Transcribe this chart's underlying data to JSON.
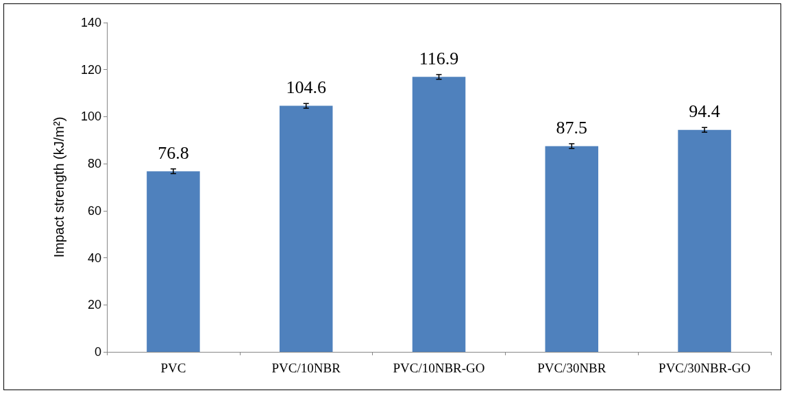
{
  "chart_data": {
    "type": "bar",
    "ylabel": "Impact strength (kJ/m²)",
    "categories": [
      "PVC",
      "PVC/10NBR",
      "PVC/10NBR-GO",
      "PVC/30NBR",
      "PVC/30NBR-GO"
    ],
    "values": [
      76.8,
      104.6,
      116.9,
      87.5,
      94.4
    ],
    "errors": [
      1,
      1,
      1,
      1,
      1
    ],
    "color": "#4f81bd",
    "ylim": [
      0,
      140
    ],
    "yticks": [
      0,
      20,
      40,
      60,
      80,
      100,
      120,
      140
    ],
    "data_labels": true,
    "grid": false
  }
}
